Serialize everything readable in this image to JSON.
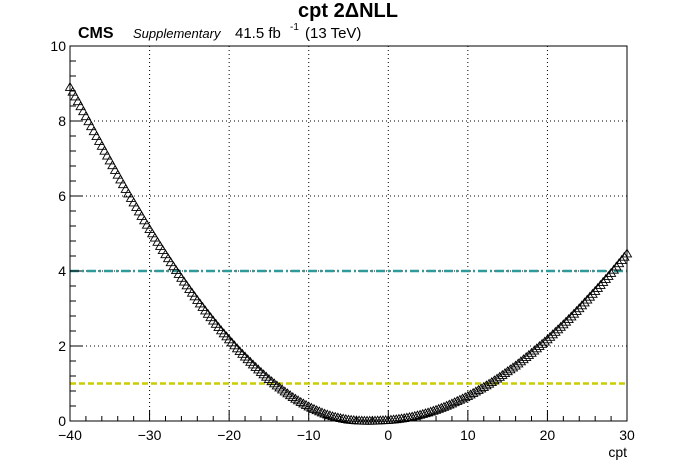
{
  "header": {
    "title": "cpt 2ΔNLL",
    "experiment": "CMS",
    "tag": "Supplementary",
    "lumi_value": "41.5 fb",
    "lumi_exponent": "-1",
    "energy": "(13 TeV)"
  },
  "chart_data": {
    "type": "scatter",
    "title": "cpt 2ΔNLL",
    "xlabel": "cpt",
    "ylabel": "",
    "xlim": [
      -40,
      30
    ],
    "ylim": [
      0,
      10
    ],
    "grid": true,
    "x_ticks": [
      "−40",
      "−30",
      "−20",
      "−10",
      "0",
      "10",
      "20",
      "30"
    ],
    "y_ticks": [
      "0",
      "2",
      "4",
      "6",
      "8",
      "10"
    ],
    "series": [
      {
        "marker": "open-triangle",
        "color": "#000000",
        "x": [
          -40,
          -39,
          -38,
          -37,
          -36,
          -35,
          -34,
          -33,
          -32,
          -31,
          -30,
          -29,
          -28,
          -27,
          -26,
          -25,
          -24,
          -23,
          -22,
          -21,
          -20,
          -19,
          -18,
          -17,
          -16,
          -15,
          -14,
          -13,
          -12,
          -11,
          -10,
          -9,
          -8,
          -7,
          -6,
          -5,
          -4,
          -3,
          -2,
          -1,
          0,
          1,
          2,
          3,
          4,
          5,
          6,
          7,
          8,
          9,
          10,
          11,
          12,
          13,
          14,
          15,
          16,
          17,
          18,
          19,
          20,
          21,
          22,
          23,
          24,
          25,
          26,
          27,
          28,
          29,
          30
        ],
        "y": [
          8.9,
          8.52,
          8.12,
          7.72,
          7.33,
          6.94,
          6.56,
          6.18,
          5.82,
          5.46,
          5.11,
          4.77,
          4.44,
          4.12,
          3.81,
          3.51,
          3.22,
          2.94,
          2.67,
          2.41,
          2.17,
          1.93,
          1.71,
          1.5,
          1.3,
          1.11,
          0.94,
          0.78,
          0.63,
          0.5,
          0.38,
          0.28,
          0.19,
          0.12,
          0.07,
          0.03,
          0.01,
          0.0,
          0.0,
          0.01,
          0.02,
          0.04,
          0.07,
          0.11,
          0.16,
          0.22,
          0.29,
          0.37,
          0.46,
          0.56,
          0.66,
          0.78,
          0.9,
          1.03,
          1.17,
          1.32,
          1.47,
          1.64,
          1.81,
          1.99,
          2.17,
          2.37,
          2.57,
          2.78,
          3.0,
          3.23,
          3.46,
          3.7,
          3.94,
          4.2,
          4.46
        ]
      }
    ],
    "reference_lines": [
      {
        "y": 4,
        "color": "#2e9a9a",
        "style": "dash-dot"
      },
      {
        "y": 1,
        "color": "#cccc00",
        "style": "dashed"
      }
    ]
  }
}
